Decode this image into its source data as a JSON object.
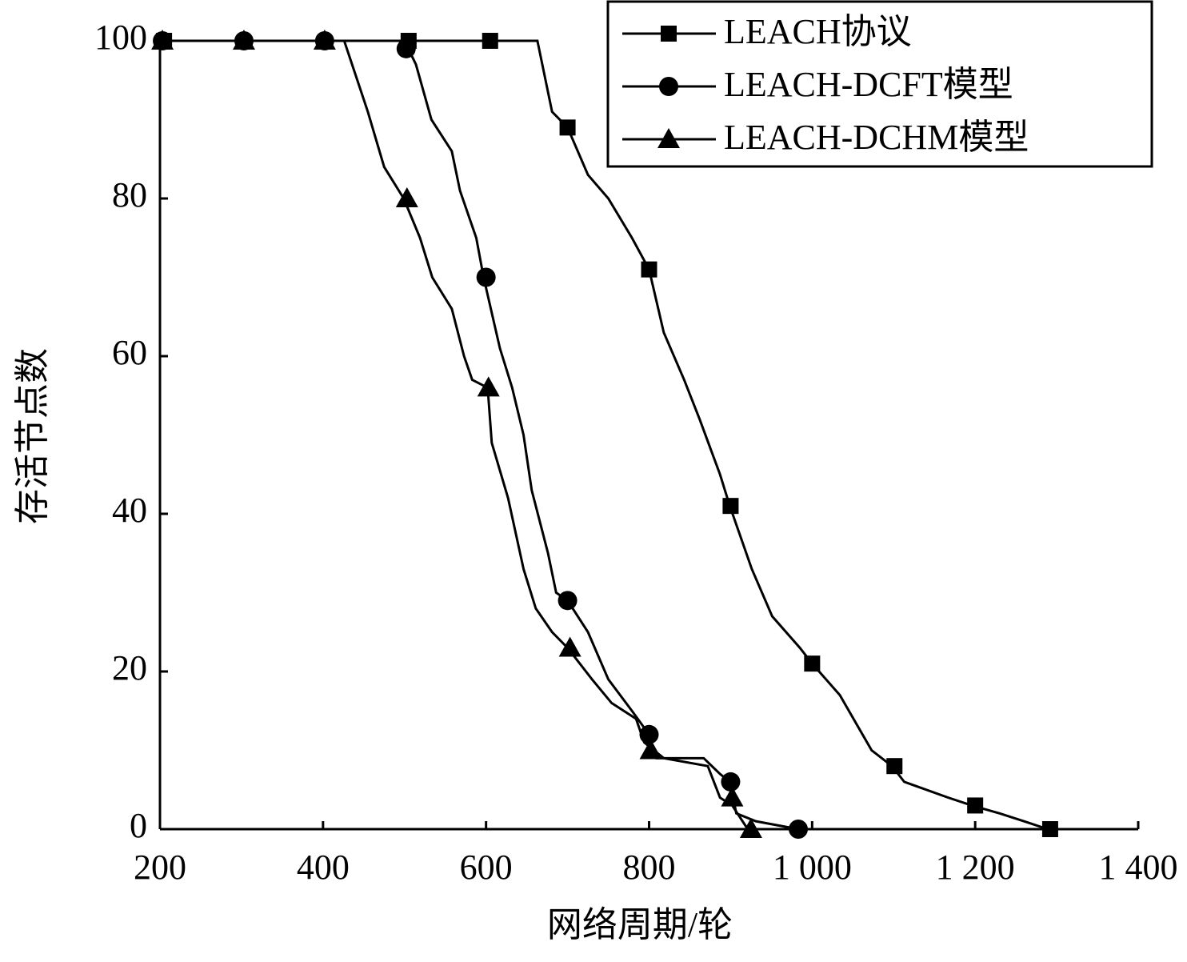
{
  "chart_data": {
    "type": "line",
    "x_label": "网络周期/轮",
    "y_label": "存活节点数",
    "xlim": [
      200,
      1400
    ],
    "xticks": [
      200,
      400,
      600,
      800,
      {
        "value": 1000,
        "label": "1 000"
      },
      {
        "value": 1200,
        "label": "1 200"
      },
      {
        "value": 1400,
        "label": "1 400"
      }
    ],
    "ylim": [
      0,
      100
    ],
    "yticks": [
      0,
      20,
      40,
      60,
      80,
      100
    ],
    "legend": "top-right",
    "series": [
      {
        "name": "LEACH协议",
        "color": "#000000",
        "marker": "square",
        "x": [
          200,
          663,
          681,
          700,
          725,
          750,
          779,
          800,
          818,
          843,
          862,
          887,
          899,
          926,
          951,
          985,
          1000,
          1034,
          1073,
          1098,
          1113,
          1167,
          1196,
          1230,
          1260,
          1289
        ],
        "values": [
          100,
          100,
          91,
          89,
          83,
          80,
          75,
          71,
          63,
          57,
          52,
          45,
          41,
          33,
          27,
          23,
          21,
          17,
          10,
          8,
          6,
          4,
          3,
          2,
          1,
          0
        ],
        "markers": {
          "x": [
            205,
            505,
            605,
            700,
            800,
            900,
            1000,
            1101,
            1200,
            1292
          ],
          "values": [
            100,
            100,
            100,
            89,
            71,
            41,
            21,
            8,
            3,
            0
          ]
        }
      },
      {
        "name": "LEACH-DCFT模型",
        "color": "#000000",
        "marker": "circle",
        "x": [
          200,
          500,
          514,
          533,
          558,
          568,
          588,
          597,
          617,
          632,
          646,
          656,
          676,
          686,
          700,
          725,
          750,
          779,
          800,
          809,
          867,
          887,
          899,
          907,
          931,
          983
        ],
        "values": [
          100,
          100,
          97,
          90,
          86,
          81,
          75,
          70,
          61,
          56,
          50,
          43,
          35,
          30,
          29,
          25,
          19,
          15,
          12,
          9,
          9,
          7,
          6,
          2,
          1,
          0
        ],
        "markers": {
          "x": [
            203,
            303,
            402,
            502,
            600,
            700,
            800,
            900,
            983
          ],
          "values": [
            100,
            100,
            100,
            99,
            70,
            29,
            12,
            6,
            0
          ]
        }
      },
      {
        "name": "LEACH-DCHM模型",
        "color": "#000000",
        "marker": "triangle",
        "x": [
          200,
          426,
          455,
          475,
          499,
          519,
          534,
          558,
          573,
          583,
          602,
          607,
          627,
          646,
          661,
          681,
          700,
          730,
          754,
          784,
          794,
          818,
          872,
          887,
          902,
          921
        ],
        "values": [
          100,
          100,
          91,
          84,
          80,
          75,
          70,
          66,
          60,
          57,
          56,
          49,
          42,
          33,
          28,
          25,
          23,
          19,
          16,
          14,
          11,
          9,
          8,
          4,
          3,
          0
        ],
        "markers": {
          "x": [
            203,
            303,
            402,
            503,
            603,
            703,
            802,
            902,
            925
          ],
          "values": [
            100,
            100,
            100,
            80,
            56,
            23,
            10,
            4,
            0
          ]
        }
      }
    ]
  }
}
